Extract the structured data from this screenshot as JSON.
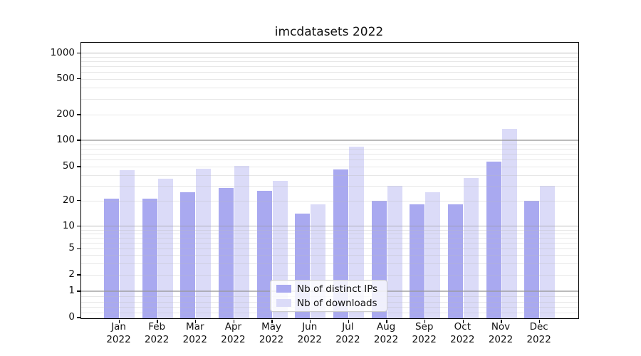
{
  "chart_data": {
    "type": "bar",
    "title": "imcdatasets 2022",
    "categories": [
      "Jan",
      "Feb",
      "Mar",
      "Apr",
      "May",
      "Jun",
      "Jul",
      "Aug",
      "Sep",
      "Oct",
      "Nov",
      "Dec"
    ],
    "category_year": "2022",
    "series": [
      {
        "name": "Nb of distinct IPs",
        "color": "#a9a9f0",
        "values": [
          21,
          21,
          25,
          28,
          26,
          14,
          46,
          20,
          18,
          18,
          57,
          20
        ]
      },
      {
        "name": "Nb of downloads",
        "color": "#dbdbf8",
        "values": [
          45,
          36,
          47,
          51,
          34,
          18,
          85,
          30,
          25,
          37,
          135,
          30
        ]
      }
    ],
    "yscale": "symlog",
    "yticks": [
      0,
      1,
      2,
      5,
      10,
      20,
      50,
      100,
      200,
      500,
      1000
    ],
    "ylim": [
      0,
      1400
    ],
    "xlabel": "",
    "ylabel": "",
    "grid": true,
    "legend_position": "lower center"
  },
  "colors": {
    "background": "#ffffff",
    "bar_distinct_ips": "#a9a9f0",
    "bar_downloads": "#dbdbf8",
    "major_grid": "#969696",
    "minor_grid": "#b9b9b9",
    "axis": "#000000",
    "text": "#111111",
    "legend_border": "#cccccc"
  }
}
